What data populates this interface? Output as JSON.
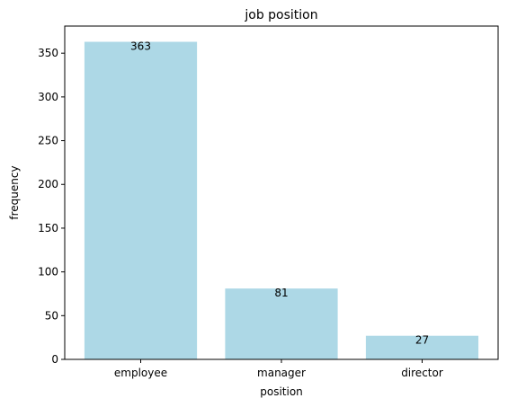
{
  "chart_data": {
    "type": "bar",
    "title": "job position",
    "xlabel": "position",
    "ylabel": "frequency",
    "categories": [
      "employee",
      "manager",
      "director"
    ],
    "values": [
      363,
      81,
      27
    ],
    "ylim": [
      0,
      381
    ],
    "yticks": [
      0,
      50,
      100,
      150,
      200,
      250,
      300,
      350
    ],
    "bar_color": "#add8e6",
    "grid": false,
    "legend": "none"
  }
}
